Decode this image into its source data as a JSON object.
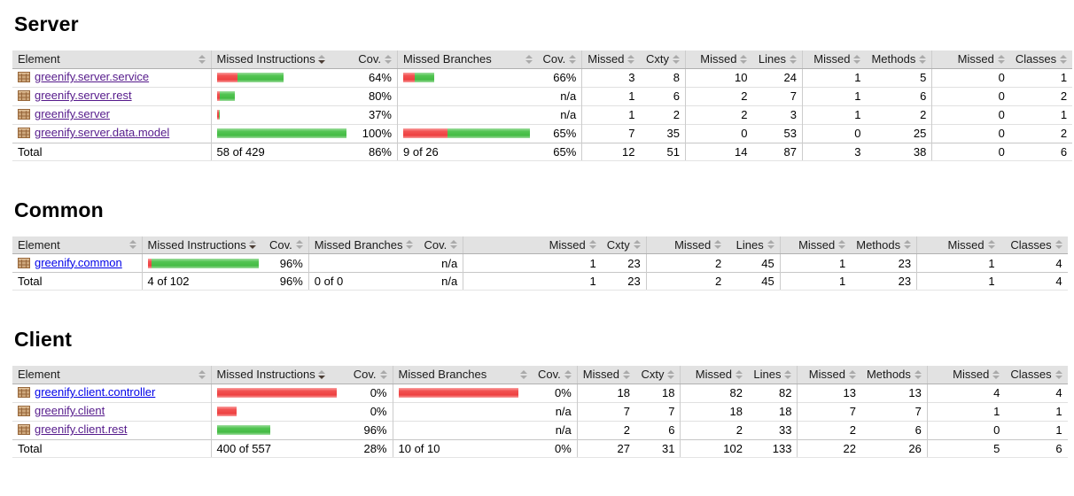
{
  "page": {
    "icons": {
      "row_icon": "package-icon",
      "header_icon": "sort-arrows-icon"
    },
    "colors": {
      "bar_red": "#ee4040",
      "bar_green": "#44bb44",
      "link_visited": "#551A8B",
      "link_unvisited": "#0000E8",
      "header_bg": "#e2e2e2"
    },
    "sort": {
      "active_column": "Missed Instructions",
      "direction": "desc"
    },
    "columns": [
      "Element",
      "Missed Instructions",
      "Cov.",
      "Missed Branches",
      "Cov.",
      "Missed",
      "Cxty",
      "Missed",
      "Lines",
      "Missed",
      "Methods",
      "Missed",
      "Classes"
    ],
    "sections": [
      {
        "title": "Server",
        "rows": [
          {
            "element": "greenify.server.service",
            "visited": true,
            "instr_bar": {
              "red": 23,
              "green": 52
            },
            "instr_cov": "64%",
            "branch_bar": {
              "red": 13,
              "green": 22
            },
            "branch_cov": "66%",
            "counters": [
              "3",
              "8",
              "10",
              "24",
              "1",
              "5",
              "0",
              "1"
            ]
          },
          {
            "element": "greenify.server.rest",
            "visited": true,
            "instr_bar": {
              "red": 3,
              "green": 17
            },
            "instr_cov": "80%",
            "branch_bar": {
              "red": 0,
              "green": 0
            },
            "branch_cov": "n/a",
            "counters": [
              "1",
              "6",
              "2",
              "7",
              "1",
              "6",
              "0",
              "2"
            ]
          },
          {
            "element": "greenify.server",
            "visited": true,
            "instr_bar": {
              "red": 2,
              "green": 1
            },
            "instr_cov": "37%",
            "branch_bar": {
              "red": 0,
              "green": 0
            },
            "branch_cov": "n/a",
            "counters": [
              "1",
              "2",
              "2",
              "3",
              "1",
              "2",
              "0",
              "1"
            ]
          },
          {
            "element": "greenify.server.data.model",
            "visited": true,
            "instr_bar": {
              "red": 0,
              "green": 146
            },
            "instr_cov": "100%",
            "branch_bar": {
              "red": 50,
              "green": 93
            },
            "branch_cov": "65%",
            "counters": [
              "7",
              "35",
              "0",
              "53",
              "0",
              "25",
              "0",
              "2"
            ]
          }
        ],
        "total": {
          "label": "Total",
          "instr_text": "58 of 429",
          "instr_cov": "86%",
          "branch_text": "9 of 26",
          "branch_cov": "65%",
          "counters": [
            "12",
            "51",
            "14",
            "87",
            "3",
            "38",
            "0",
            "6"
          ]
        }
      },
      {
        "title": "Common",
        "rows": [
          {
            "element": "greenify.common",
            "visited": false,
            "instr_bar": {
              "red": 4,
              "green": 121
            },
            "instr_cov": "96%",
            "branch_bar": {
              "red": 0,
              "green": 0
            },
            "branch_cov": "n/a",
            "counters": [
              "1",
              "23",
              "2",
              "45",
              "1",
              "23",
              "1",
              "4"
            ]
          }
        ],
        "total": {
          "label": "Total",
          "instr_text": "4 of 102",
          "instr_cov": "96%",
          "branch_text": "0 of 0",
          "branch_cov": "n/a",
          "counters": [
            "1",
            "23",
            "2",
            "45",
            "1",
            "23",
            "1",
            "4"
          ]
        }
      },
      {
        "title": "Client",
        "rows": [
          {
            "element": "greenify.client.controller",
            "visited": false,
            "instr_bar": {
              "red": 135,
              "green": 0
            },
            "instr_cov": "0%",
            "branch_bar": {
              "red": 135,
              "green": 0
            },
            "branch_cov": "0%",
            "counters": [
              "18",
              "18",
              "82",
              "82",
              "13",
              "13",
              "4",
              "4"
            ]
          },
          {
            "element": "greenify.client",
            "visited": true,
            "instr_bar": {
              "red": 22,
              "green": 0
            },
            "instr_cov": "0%",
            "branch_bar": {
              "red": 0,
              "green": 0
            },
            "branch_cov": "n/a",
            "counters": [
              "7",
              "7",
              "18",
              "18",
              "7",
              "7",
              "1",
              "1"
            ]
          },
          {
            "element": "greenify.client.rest",
            "visited": true,
            "instr_bar": {
              "red": 0,
              "green": 60
            },
            "instr_cov": "96%",
            "branch_bar": {
              "red": 0,
              "green": 0
            },
            "branch_cov": "n/a",
            "counters": [
              "2",
              "6",
              "2",
              "33",
              "2",
              "6",
              "0",
              "1"
            ]
          }
        ],
        "total": {
          "label": "Total",
          "instr_text": "400 of 557",
          "instr_cov": "28%",
          "branch_text": "10 of 10",
          "branch_cov": "0%",
          "counters": [
            "27",
            "31",
            "102",
            "133",
            "22",
            "26",
            "5",
            "6"
          ]
        }
      }
    ]
  }
}
